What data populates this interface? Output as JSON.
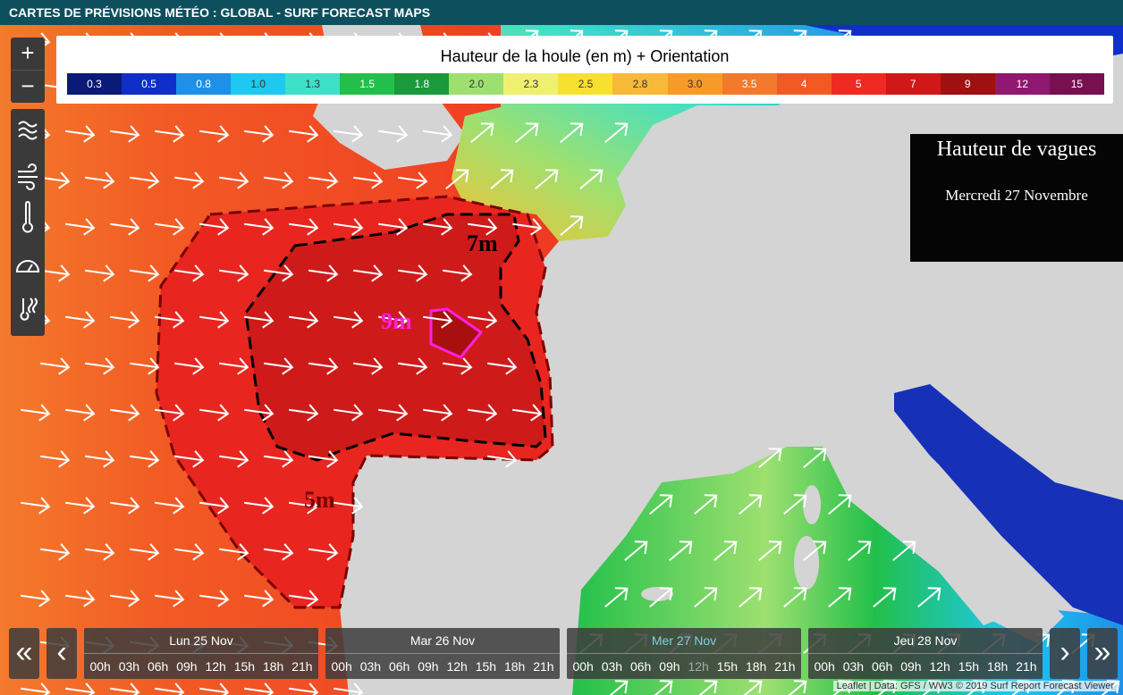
{
  "header": {
    "title": "CARTES DE PRÉVISIONS MÉTÉO : GLOBAL - SURF FORECAST MAPS"
  },
  "zoom": {
    "in": "+",
    "out": "−"
  },
  "legend": {
    "title": "Hauteur de la houle (en m) + Orientation",
    "items": [
      {
        "label": "0.3",
        "color": "#0a1a78"
      },
      {
        "label": "0.5",
        "color": "#0f2fc8"
      },
      {
        "label": "0.8",
        "color": "#1e90e8"
      },
      {
        "label": "1.0",
        "color": "#1ec8f0"
      },
      {
        "label": "1.3",
        "color": "#3ee0c8"
      },
      {
        "label": "1.5",
        "color": "#22c04a"
      },
      {
        "label": "1.8",
        "color": "#1a9a3a"
      },
      {
        "label": "2.0",
        "color": "#9ee070"
      },
      {
        "label": "2.3",
        "color": "#f0f070"
      },
      {
        "label": "2.5",
        "color": "#f8e030"
      },
      {
        "label": "2.8",
        "color": "#f8b838"
      },
      {
        "label": "3.0",
        "color": "#f89a28"
      },
      {
        "label": "3.5",
        "color": "#f27a2c"
      },
      {
        "label": "4",
        "color": "#f25a24"
      },
      {
        "label": "5",
        "color": "#ee2a22"
      },
      {
        "label": "7",
        "color": "#d01818"
      },
      {
        "label": "9",
        "color": "#a01010"
      },
      {
        "label": "12",
        "color": "#901870"
      },
      {
        "label": "15",
        "color": "#781050"
      }
    ]
  },
  "info_box": {
    "title": "Hauteur de vagues",
    "date": "Mercredi 27 Novembre"
  },
  "annotations": {
    "contour_7": "7m",
    "contour_9": "9m",
    "contour_5": "5m"
  },
  "timeline": {
    "first": "«",
    "prev": "‹",
    "next": "›",
    "last": "»",
    "days": [
      {
        "label": "Lun 25 Nov",
        "hours": [
          "00h",
          "03h",
          "06h",
          "09h",
          "12h",
          "15h",
          "18h",
          "21h"
        ]
      },
      {
        "label": "Mar 26 Nov",
        "hours": [
          "00h",
          "03h",
          "06h",
          "09h",
          "12h",
          "15h",
          "18h",
          "21h"
        ]
      },
      {
        "label": "Mer 27 Nov",
        "hours": [
          "00h",
          "03h",
          "06h",
          "09h",
          "12h",
          "15h",
          "18h",
          "21h"
        ],
        "active": true,
        "selected_hour": 4
      },
      {
        "label": "Jeu 28 Nov",
        "hours": [
          "00h",
          "03h",
          "06h",
          "09h",
          "12h",
          "15h",
          "18h",
          "21h"
        ]
      }
    ]
  },
  "attribution": "Leaflet | Data: GFS / WW3 © 2019 Surf Report Forecast Viewer"
}
